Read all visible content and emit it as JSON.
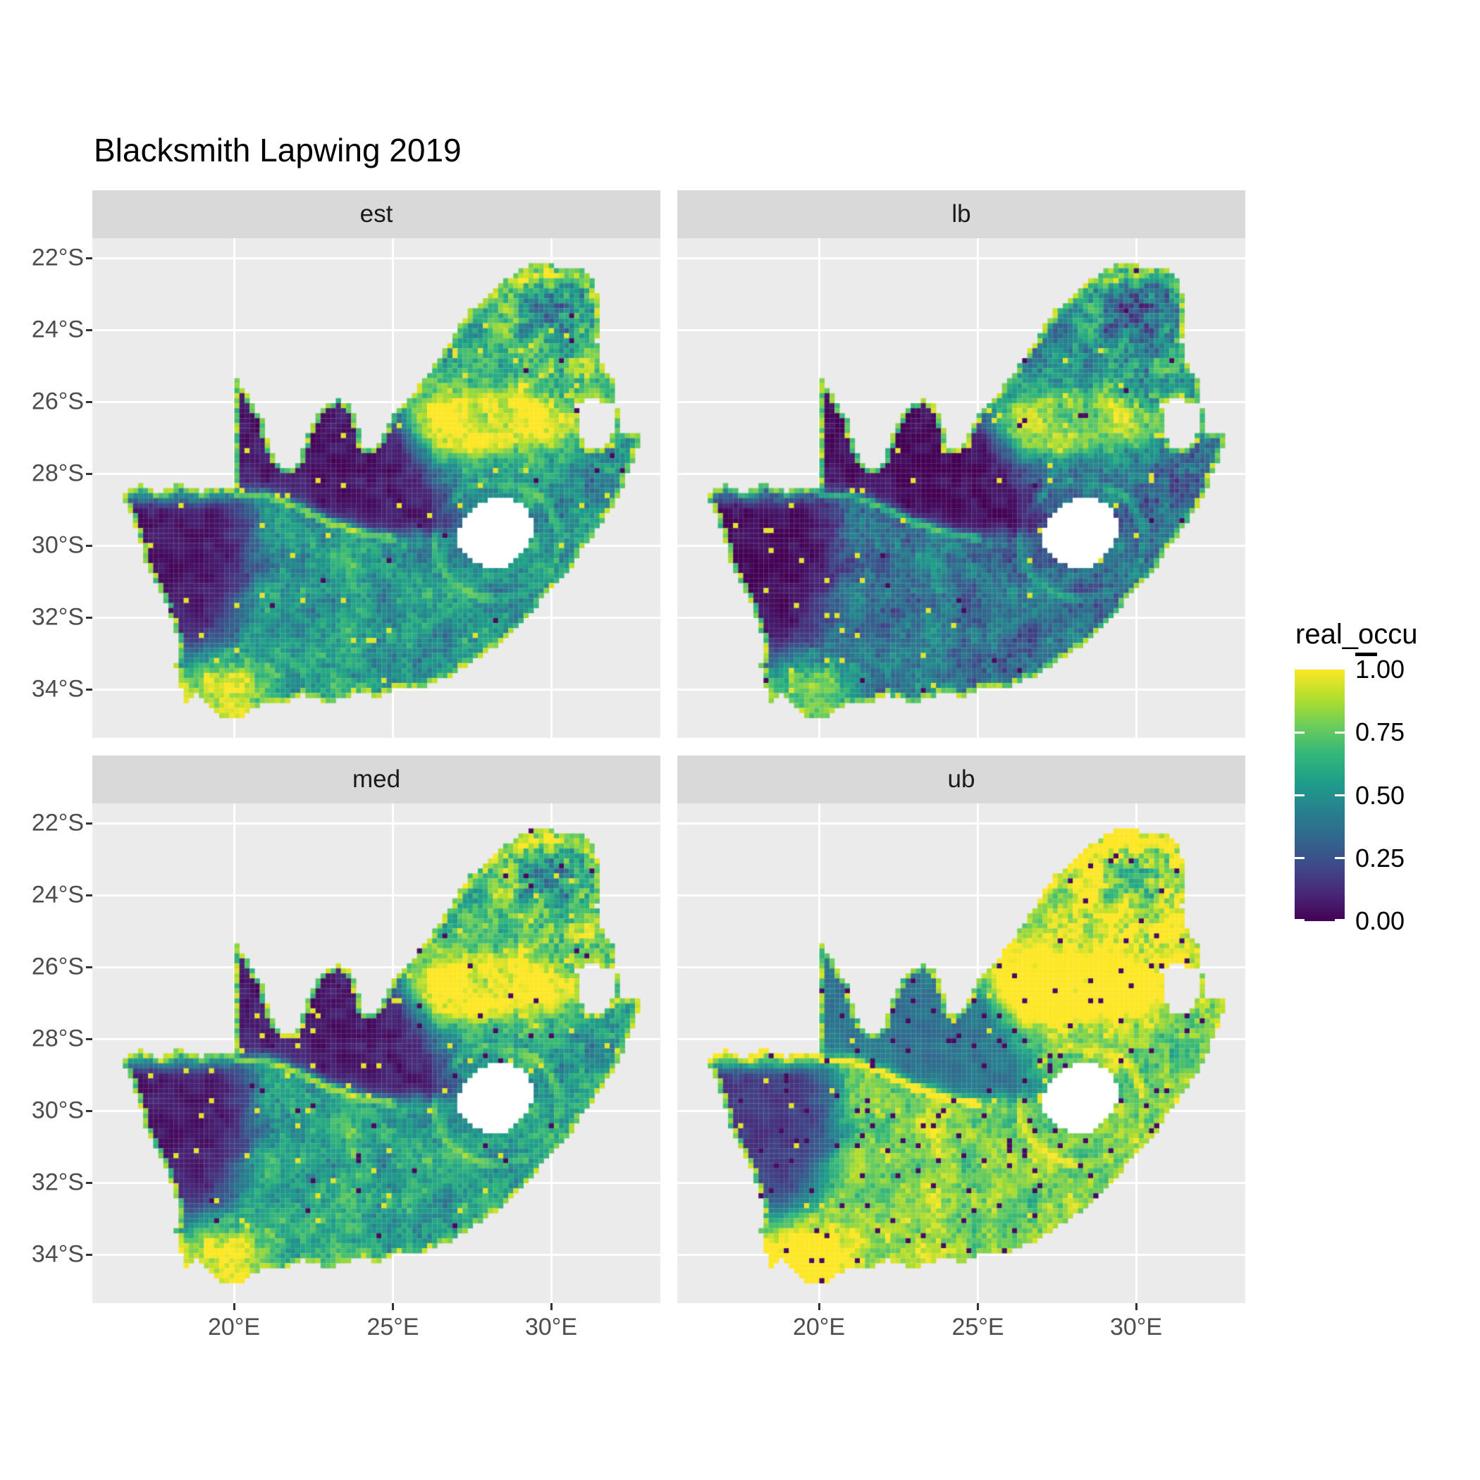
{
  "title": "Blacksmith Lapwing 2019",
  "facets": [
    {
      "key": "est",
      "label": "est",
      "row": 0,
      "col": 0
    },
    {
      "key": "lb",
      "label": "lb",
      "row": 0,
      "col": 1
    },
    {
      "key": "med",
      "label": "med",
      "row": 1,
      "col": 0
    },
    {
      "key": "ub",
      "label": "ub",
      "row": 1,
      "col": 1
    }
  ],
  "axes": {
    "x": {
      "labels": [
        "20°E",
        "25°E",
        "30°E"
      ],
      "values": [
        20,
        25,
        30
      ]
    },
    "y": {
      "labels": [
        "22°S",
        "24°S",
        "26°S",
        "28°S",
        "30°S",
        "32°S",
        "34°S"
      ],
      "values": [
        22,
        24,
        26,
        28,
        30,
        32,
        34
      ]
    }
  },
  "legend": {
    "title": "real_occu",
    "labels": [
      "1.00",
      "0.75",
      "0.50",
      "0.25",
      "0.00"
    ],
    "breaks": [
      1.0,
      0.75,
      0.5,
      0.25,
      0.0
    ]
  },
  "colors": {
    "background": "#FFFFFF",
    "panel_bg": "#EBEBEB",
    "strip_bg": "#D9D9D9",
    "gridline": "#FFFFFF",
    "axis_text": "#4D4D4D",
    "tick_mark": "#333333",
    "title_text": "#000000",
    "strip_text": "#1A1A1A",
    "lesotho_fill": "#FFFFFF"
  },
  "chart_data": {
    "type": "heatmap",
    "subtype": "faceted-geographic-raster",
    "title": "Blacksmith Lapwing 2019",
    "region": "South Africa (Lesotho and Eswatini excluded)",
    "facet_labels": [
      "est",
      "lb",
      "med",
      "ub"
    ],
    "value_name": "real_occu",
    "value_range": [
      0,
      1
    ],
    "legend_breaks": [
      0,
      0.25,
      0.5,
      0.75,
      1.0
    ],
    "lon_range_deg_e": [
      15.53,
      33.44
    ],
    "lat_range_deg_s": [
      21.45,
      35.35
    ],
    "x_ticks_deg_e": [
      20,
      25,
      30
    ],
    "y_ticks_deg_s": [
      22,
      24,
      26,
      28,
      30,
      32,
      34
    ],
    "grid_on": true,
    "legend_position": "right",
    "cell_deg_lon": 0.16,
    "viridis_stops": [
      "#440154",
      "#482878",
      "#3E4A89",
      "#31688E",
      "#26828E",
      "#1F9E89",
      "#35B779",
      "#6DCD59",
      "#B4DE2C",
      "#FDE725"
    ],
    "facet_value_shift": {
      "est": 0.0,
      "lb": -0.16,
      "med": 0.05,
      "ub": 0.27
    },
    "kalahari_block_value": {
      "est": 0.06,
      "lb": 0.03,
      "med": 0.07,
      "ub": 0.38
    },
    "namaqualand_value": {
      "est": 0.06,
      "lb": 0.03,
      "med": 0.07,
      "ub": 0.17
    },
    "salt_yellow_prob": {
      "est": 0.012,
      "lb": 0.012,
      "med": 0.012,
      "ub": 0.01
    },
    "pepper_dark_prob": {
      "est": 0.006,
      "lb": 0.004,
      "med": 0.008,
      "ub": 0.034
    },
    "outline_lon_latS": [
      [
        16.45,
        28.6
      ],
      [
        17.05,
        28.3
      ],
      [
        17.65,
        28.55
      ],
      [
        18.25,
        28.27
      ],
      [
        18.9,
        28.5
      ],
      [
        19.5,
        28.35
      ],
      [
        19.98,
        28.45
      ],
      [
        19.98,
        25.2
      ],
      [
        20.15,
        25.45
      ],
      [
        20.4,
        25.8
      ],
      [
        20.65,
        26.15
      ],
      [
        20.9,
        26.5
      ],
      [
        21.05,
        27.0
      ],
      [
        21.25,
        27.55
      ],
      [
        21.6,
        27.9
      ],
      [
        21.95,
        27.85
      ],
      [
        22.15,
        27.4
      ],
      [
        22.35,
        26.85
      ],
      [
        22.6,
        26.3
      ],
      [
        22.9,
        26.05
      ],
      [
        23.35,
        25.95
      ],
      [
        23.7,
        26.05
      ],
      [
        23.85,
        26.55
      ],
      [
        24.0,
        27.05
      ],
      [
        24.15,
        27.35
      ],
      [
        24.45,
        27.3
      ],
      [
        24.75,
        26.85
      ],
      [
        25.0,
        26.4
      ],
      [
        25.25,
        26.05
      ],
      [
        25.6,
        25.8
      ],
      [
        26.0,
        25.35
      ],
      [
        26.35,
        24.9
      ],
      [
        26.75,
        24.45
      ],
      [
        27.0,
        23.95
      ],
      [
        27.45,
        23.45
      ],
      [
        27.95,
        23.1
      ],
      [
        28.4,
        22.7
      ],
      [
        28.9,
        22.4
      ],
      [
        29.35,
        22.2
      ],
      [
        29.85,
        22.15
      ],
      [
        30.3,
        22.3
      ],
      [
        30.75,
        22.3
      ],
      [
        31.2,
        22.4
      ],
      [
        31.45,
        22.95
      ],
      [
        31.6,
        23.65
      ],
      [
        31.4,
        24.3
      ],
      [
        31.6,
        24.95
      ],
      [
        31.95,
        25.4
      ],
      [
        32.05,
        25.95
      ],
      [
        32.15,
        26.85
      ],
      [
        32.9,
        26.86
      ],
      [
        32.6,
        27.6
      ],
      [
        32.25,
        28.35
      ],
      [
        32.0,
        28.85
      ],
      [
        31.65,
        29.3
      ],
      [
        31.05,
        30.0
      ],
      [
        30.65,
        30.6
      ],
      [
        30.25,
        31.0
      ],
      [
        29.6,
        31.6
      ],
      [
        28.9,
        32.25
      ],
      [
        28.2,
        32.85
      ],
      [
        27.5,
        33.25
      ],
      [
        26.85,
        33.6
      ],
      [
        26.2,
        33.85
      ],
      [
        25.7,
        34.02
      ],
      [
        25.0,
        33.98
      ],
      [
        24.6,
        34.2
      ],
      [
        23.95,
        34.1
      ],
      [
        23.35,
        34.3
      ],
      [
        22.8,
        34.35
      ],
      [
        22.15,
        34.15
      ],
      [
        21.45,
        34.4
      ],
      [
        20.8,
        34.45
      ],
      [
        20.1,
        34.8
      ],
      [
        19.6,
        34.75
      ],
      [
        19.1,
        34.4
      ],
      [
        18.78,
        34.12
      ],
      [
        18.45,
        34.35
      ],
      [
        18.33,
        33.9
      ],
      [
        18.15,
        33.4
      ],
      [
        18.28,
        32.78
      ],
      [
        18.1,
        32.2
      ],
      [
        17.85,
        31.6
      ],
      [
        17.5,
        31.0
      ],
      [
        17.2,
        30.4
      ],
      [
        16.95,
        29.7
      ],
      [
        16.7,
        29.0
      ]
    ],
    "lesotho_hole_lon_latS": [
      [
        27.05,
        29.6
      ],
      [
        27.5,
        28.95
      ],
      [
        28.2,
        28.7
      ],
      [
        28.9,
        28.75
      ],
      [
        29.35,
        29.15
      ],
      [
        29.45,
        29.7
      ],
      [
        29.15,
        30.2
      ],
      [
        28.6,
        30.55
      ],
      [
        28.05,
        30.65
      ],
      [
        27.45,
        30.4
      ],
      [
        27.1,
        30.05
      ]
    ],
    "eswatini_hole_lon_latS": [
      [
        30.8,
        26.1
      ],
      [
        31.15,
        25.95
      ],
      [
        31.85,
        25.98
      ],
      [
        32.08,
        26.25
      ],
      [
        32.03,
        26.8
      ],
      [
        31.6,
        27.3
      ],
      [
        31.15,
        27.32
      ],
      [
        30.85,
        26.8
      ]
    ],
    "orange_river_lon_latS": [
      [
        16.5,
        28.55
      ],
      [
        17.15,
        28.25
      ],
      [
        17.7,
        28.6
      ],
      [
        18.35,
        28.3
      ],
      [
        19.05,
        28.55
      ],
      [
        19.6,
        28.35
      ],
      [
        20.25,
        28.62
      ],
      [
        21.0,
        28.6
      ],
      [
        21.6,
        28.78
      ],
      [
        22.3,
        29.05
      ],
      [
        23.0,
        29.35
      ],
      [
        23.7,
        29.55
      ],
      [
        24.4,
        29.7
      ],
      [
        24.95,
        29.8
      ]
    ],
    "limpopo_ridge_lon_latS": [
      [
        26.6,
        24.6
      ],
      [
        27.3,
        23.8
      ],
      [
        28.1,
        23.1
      ],
      [
        29.0,
        22.6
      ],
      [
        29.9,
        22.45
      ],
      [
        30.8,
        22.6
      ],
      [
        31.3,
        22.9
      ]
    ]
  }
}
